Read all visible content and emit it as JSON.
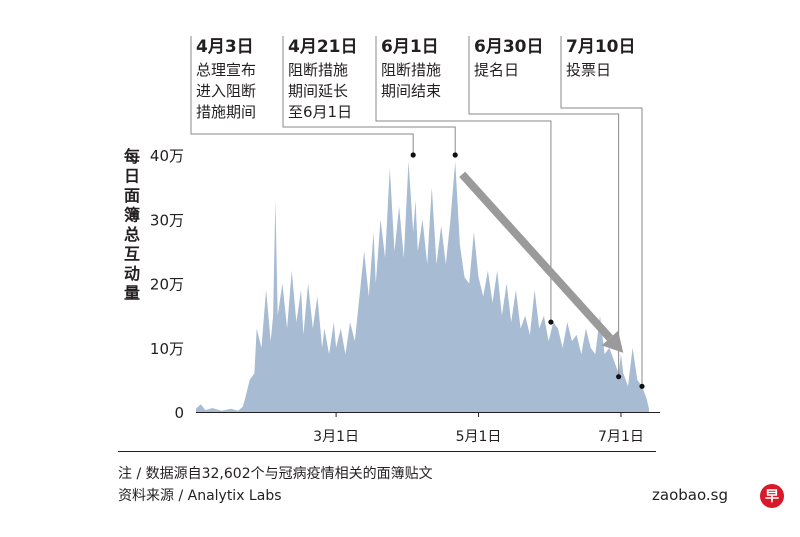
{
  "chart_data": {
    "type": "area",
    "ylabel": "每日面簿总互动量",
    "ylim": [
      0,
      400000
    ],
    "yticks": [
      {
        "value": 0,
        "label": "0"
      },
      {
        "value": 100000,
        "label": "10万"
      },
      {
        "value": 200000,
        "label": "20万"
      },
      {
        "value": 300000,
        "label": "30万"
      },
      {
        "value": 400000,
        "label": "40万"
      }
    ],
    "xrange": [
      "2020-01-01",
      "2020-07-16"
    ],
    "xticks": [
      {
        "date": "2020-03-01",
        "label": "3月1日"
      },
      {
        "date": "2020-05-01",
        "label": "5月1日"
      },
      {
        "date": "2020-07-01",
        "label": "7月1日"
      }
    ],
    "series": [
      {
        "color": "#a7bbd3",
        "points": [
          [
            "2020-01-01",
            5000
          ],
          [
            "2020-01-03",
            12000
          ],
          [
            "2020-01-05",
            3000
          ],
          [
            "2020-01-08",
            6000
          ],
          [
            "2020-01-12",
            2000
          ],
          [
            "2020-01-16",
            5000
          ],
          [
            "2020-01-19",
            2000
          ],
          [
            "2020-01-21",
            8000
          ],
          [
            "2020-01-22",
            20000
          ],
          [
            "2020-01-24",
            50000
          ],
          [
            "2020-01-26",
            60000
          ],
          [
            "2020-01-27",
            130000
          ],
          [
            "2020-01-29",
            100000
          ],
          [
            "2020-01-31",
            190000
          ],
          [
            "2020-02-02",
            110000
          ],
          [
            "2020-02-03",
            150000
          ],
          [
            "2020-02-04",
            330000
          ],
          [
            "2020-02-05",
            150000
          ],
          [
            "2020-02-07",
            200000
          ],
          [
            "2020-02-09",
            130000
          ],
          [
            "2020-02-11",
            220000
          ],
          [
            "2020-02-13",
            140000
          ],
          [
            "2020-02-15",
            190000
          ],
          [
            "2020-02-16",
            120000
          ],
          [
            "2020-02-18",
            200000
          ],
          [
            "2020-02-20",
            130000
          ],
          [
            "2020-02-22",
            180000
          ],
          [
            "2020-02-24",
            100000
          ],
          [
            "2020-02-25",
            130000
          ],
          [
            "2020-02-27",
            90000
          ],
          [
            "2020-02-29",
            140000
          ],
          [
            "2020-03-01",
            100000
          ],
          [
            "2020-03-03",
            130000
          ],
          [
            "2020-03-05",
            90000
          ],
          [
            "2020-03-07",
            140000
          ],
          [
            "2020-03-09",
            110000
          ],
          [
            "2020-03-11",
            180000
          ],
          [
            "2020-03-13",
            250000
          ],
          [
            "2020-03-15",
            180000
          ],
          [
            "2020-03-17",
            280000
          ],
          [
            "2020-03-18",
            200000
          ],
          [
            "2020-03-20",
            300000
          ],
          [
            "2020-03-22",
            240000
          ],
          [
            "2020-03-24",
            380000
          ],
          [
            "2020-03-26",
            250000
          ],
          [
            "2020-03-28",
            320000
          ],
          [
            "2020-03-30",
            240000
          ],
          [
            "2020-04-01",
            390000
          ],
          [
            "2020-04-03",
            280000
          ],
          [
            "2020-04-04",
            330000
          ],
          [
            "2020-04-05",
            250000
          ],
          [
            "2020-04-07",
            300000
          ],
          [
            "2020-04-09",
            230000
          ],
          [
            "2020-04-11",
            350000
          ],
          [
            "2020-04-13",
            230000
          ],
          [
            "2020-04-15",
            290000
          ],
          [
            "2020-04-17",
            230000
          ],
          [
            "2020-04-19",
            300000
          ],
          [
            "2020-04-21",
            390000
          ],
          [
            "2020-04-23",
            260000
          ],
          [
            "2020-04-25",
            210000
          ],
          [
            "2020-04-27",
            200000
          ],
          [
            "2020-04-29",
            280000
          ],
          [
            "2020-05-01",
            210000
          ],
          [
            "2020-05-03",
            180000
          ],
          [
            "2020-05-05",
            220000
          ],
          [
            "2020-05-07",
            170000
          ],
          [
            "2020-05-09",
            220000
          ],
          [
            "2020-05-11",
            150000
          ],
          [
            "2020-05-13",
            200000
          ],
          [
            "2020-05-15",
            140000
          ],
          [
            "2020-05-17",
            190000
          ],
          [
            "2020-05-19",
            130000
          ],
          [
            "2020-05-21",
            150000
          ],
          [
            "2020-05-23",
            120000
          ],
          [
            "2020-05-25",
            190000
          ],
          [
            "2020-05-27",
            130000
          ],
          [
            "2020-05-29",
            150000
          ],
          [
            "2020-05-31",
            110000
          ],
          [
            "2020-06-02",
            140000
          ],
          [
            "2020-06-04",
            130000
          ],
          [
            "2020-06-06",
            100000
          ],
          [
            "2020-06-08",
            140000
          ],
          [
            "2020-06-10",
            110000
          ],
          [
            "2020-06-12",
            120000
          ],
          [
            "2020-06-14",
            90000
          ],
          [
            "2020-06-16",
            130000
          ],
          [
            "2020-06-18",
            100000
          ],
          [
            "2020-06-20",
            90000
          ],
          [
            "2020-06-22",
            150000
          ],
          [
            "2020-06-24",
            90000
          ],
          [
            "2020-06-26",
            100000
          ],
          [
            "2020-06-28",
            80000
          ],
          [
            "2020-06-30",
            60000
          ],
          [
            "2020-07-01",
            90000
          ],
          [
            "2020-07-02",
            60000
          ],
          [
            "2020-07-04",
            40000
          ],
          [
            "2020-07-06",
            100000
          ],
          [
            "2020-07-08",
            50000
          ],
          [
            "2020-07-10",
            40000
          ],
          [
            "2020-07-12",
            20000
          ],
          [
            "2020-07-13",
            5000
          ]
        ]
      }
    ],
    "annotations": [
      {
        "date": "2020-04-03",
        "value": 400000,
        "title": "4月3日",
        "lines": [
          "总理宣布",
          "进入阻断",
          "措施期间"
        ]
      },
      {
        "date": "2020-04-21",
        "value": 400000,
        "title": "4月21日",
        "lines": [
          "阻断措施",
          "期间延长",
          "至6月1日"
        ]
      },
      {
        "date": "2020-06-01",
        "value": 140000,
        "title": "6月1日",
        "lines": [
          "阻断措施",
          "期间结束"
        ]
      },
      {
        "date": "2020-06-30",
        "value": 55000,
        "title": "6月30日",
        "lines": [
          "提名日"
        ]
      },
      {
        "date": "2020-07-10",
        "value": 40000,
        "title": "7月10日",
        "lines": [
          "投票日"
        ]
      }
    ],
    "trend_arrow": {
      "from": [
        "2020-04-24",
        370000
      ],
      "to": [
        "2020-07-02",
        92000
      ],
      "color": "#9a9a9a"
    }
  },
  "footer": {
    "note": "注 / 数据源自32,602个与冠病疫情相关的面簿贴文",
    "source": "资料来源 / Analytix Labs"
  },
  "brand": {
    "site": "zaobao.sg",
    "logo_text": "早",
    "logo_color": "#d7192a"
  }
}
